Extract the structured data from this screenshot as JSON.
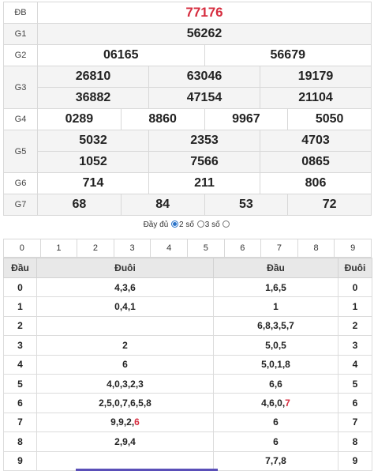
{
  "results": {
    "db": {
      "label": "ĐB",
      "numbers": [
        "77176"
      ]
    },
    "g1": {
      "label": "G1",
      "numbers": [
        "56262"
      ]
    },
    "g2": {
      "label": "G2",
      "numbers": [
        "06165",
        "56679"
      ]
    },
    "g3": {
      "label": "G3",
      "numbers": [
        "26810",
        "63046",
        "19179",
        "36882",
        "47154",
        "21104"
      ]
    },
    "g4": {
      "label": "G4",
      "numbers": [
        "0289",
        "8860",
        "9967",
        "5050"
      ]
    },
    "g5": {
      "label": "G5",
      "numbers": [
        "5032",
        "2353",
        "4703",
        "1052",
        "7566",
        "0865"
      ]
    },
    "g6": {
      "label": "G6",
      "numbers": [
        "714",
        "211",
        "806"
      ]
    },
    "g7": {
      "label": "G7",
      "numbers": [
        "68",
        "84",
        "53",
        "72"
      ]
    }
  },
  "options": {
    "full_label": "Đầy đủ",
    "two_label": "2 số",
    "three_label": "3 số",
    "selected": "2 số"
  },
  "digits": [
    "0",
    "1",
    "2",
    "3",
    "4",
    "5",
    "6",
    "7",
    "8",
    "9"
  ],
  "loto": {
    "headers": {
      "dau": "Đầu",
      "duoi": "Đuôi",
      "dau2": "Đầu",
      "duoi2": "Đuôi"
    },
    "rows": [
      {
        "head": "0",
        "tails": "4,3,6",
        "heads": "1,6,5",
        "tail": "0"
      },
      {
        "head": "1",
        "tails": "0,4,1",
        "heads": "1",
        "tail": "1"
      },
      {
        "head": "2",
        "tails": "",
        "heads": "6,8,3,5,7",
        "tail": "2"
      },
      {
        "head": "3",
        "tails": "2",
        "heads": "5,0,5",
        "tail": "3"
      },
      {
        "head": "4",
        "tails": "6",
        "heads": "5,0,1,8",
        "tail": "4"
      },
      {
        "head": "5",
        "tails": "4,0,3,2,3",
        "heads": "6,6",
        "tail": "5"
      },
      {
        "head": "6",
        "tails": "2,5,0,7,6,5,8",
        "heads_plain": "4,6,0,",
        "heads_red": "7",
        "tail": "6"
      },
      {
        "head": "7",
        "tails_plain": "9,9,2,",
        "tails_red": "6",
        "heads": "6",
        "tail": "7"
      },
      {
        "head": "8",
        "tails": "2,9,4",
        "heads": "6",
        "tail": "8"
      },
      {
        "head": "9",
        "tails": "",
        "heads": "7,7,8",
        "tail": "9"
      }
    ]
  },
  "colors": {
    "special": "#d62d3f",
    "radio_on": "#2a73c9",
    "header_bg": "#e8e8e8"
  }
}
